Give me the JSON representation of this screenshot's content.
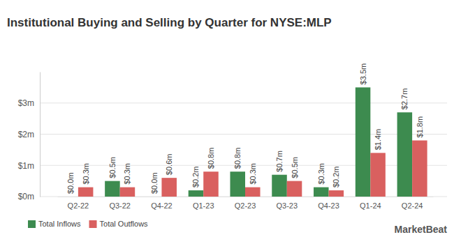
{
  "chart_data": {
    "type": "bar",
    "title": "Institutional Buying and Selling by Quarter for NYSE:MLP",
    "categories": [
      "Q2-22",
      "Q3-22",
      "Q4-22",
      "Q1-23",
      "Q2-23",
      "Q3-23",
      "Q4-23",
      "Q1-24",
      "Q2-24"
    ],
    "series": [
      {
        "name": "Total Inflows",
        "color": "#3d8b4f",
        "values": [
          0.0,
          0.5,
          0.0,
          0.2,
          0.8,
          0.7,
          0.3,
          3.5,
          2.7
        ],
        "value_labels": [
          "$0.0m",
          "$0.5m",
          "$0.0m",
          "$0.2m",
          "$0.8m",
          "$0.7m",
          "$0.3m",
          "$3.5m",
          "$2.7m"
        ]
      },
      {
        "name": "Total Outflows",
        "color": "#d9605f",
        "values": [
          0.3,
          0.3,
          0.6,
          0.8,
          0.3,
          0.5,
          0.2,
          1.4,
          1.8
        ],
        "value_labels": [
          "$0.3m",
          "$0.3m",
          "$0.6m",
          "$0.8m",
          "$0.3m",
          "$0.5m",
          "$0.2m",
          "$1.4m",
          "$1.8m"
        ]
      }
    ],
    "ylim": [
      0,
      4
    ],
    "yticks": [
      {
        "value": 0,
        "label": "$0m"
      },
      {
        "value": 1,
        "label": "$1m"
      },
      {
        "value": 2,
        "label": "$2m"
      },
      {
        "value": 3,
        "label": "$3m"
      }
    ],
    "grid": true,
    "legend": "bottom",
    "data_labels": true,
    "annotations": [
      "MarketBeat"
    ]
  }
}
